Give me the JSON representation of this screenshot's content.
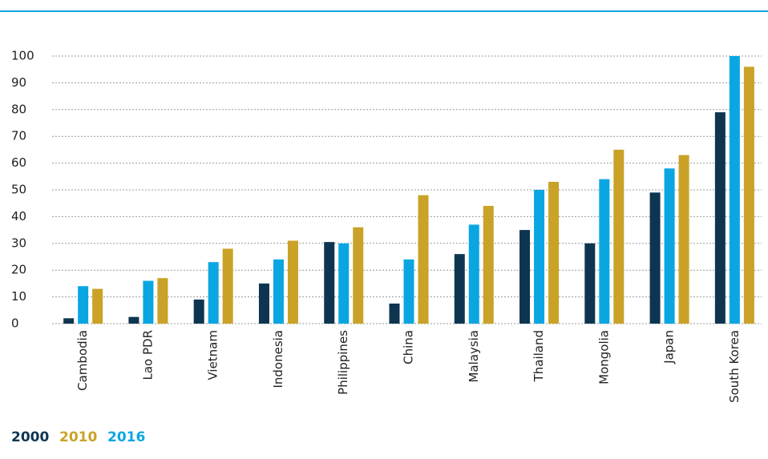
{
  "chart_data": {
    "type": "bar",
    "categories": [
      "Cambodia",
      "Lao PDR",
      "Vietnam",
      "Indonesia",
      "Philippines",
      "China",
      "Malaysia",
      "Thailand",
      "Mongolia",
      "Japan",
      "South Korea"
    ],
    "series": [
      {
        "name": "2000",
        "color": "#0e3550",
        "values": [
          2,
          2.5,
          9,
          15,
          30.5,
          7.5,
          26,
          35,
          30,
          49,
          79
        ]
      },
      {
        "name": "2010",
        "color": "#c9a227",
        "values": [
          13,
          17,
          28,
          31,
          36,
          48,
          44,
          53,
          65,
          63,
          96
        ]
      },
      {
        "name": "2016",
        "color": "#0aa6e2",
        "values": [
          14,
          16,
          23,
          24,
          30,
          24,
          37,
          50,
          54,
          58,
          100
        ]
      }
    ],
    "ylim": [
      0,
      100
    ],
    "yticks": [
      0,
      10,
      20,
      30,
      40,
      50,
      60,
      70,
      80,
      90,
      100
    ],
    "grid": true
  }
}
